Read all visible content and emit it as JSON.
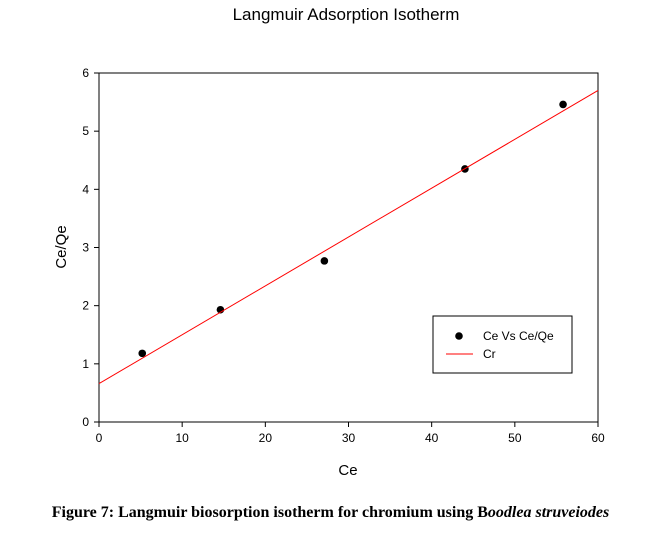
{
  "chart_data": {
    "type": "scatter",
    "title": "Langmuir Adsorption Isotherm",
    "xlabel": "Ce",
    "ylabel": "Ce/Qe",
    "xlim": [
      0,
      60
    ],
    "ylim": [
      0,
      6
    ],
    "xticks": [
      "0",
      "10",
      "20",
      "30",
      "40",
      "50",
      "60"
    ],
    "yticks": [
      "0",
      "1",
      "2",
      "3",
      "4",
      "5",
      "6"
    ],
    "grid": false,
    "legend_position": "lower-right",
    "series": [
      {
        "name": "Ce Vs Ce/Qe",
        "kind": "scatter",
        "color": "#000000",
        "points": [
          {
            "x": 5.2,
            "y": 1.18
          },
          {
            "x": 14.6,
            "y": 1.93
          },
          {
            "x": 27.1,
            "y": 2.77
          },
          {
            "x": 44.0,
            "y": 4.35
          },
          {
            "x": 55.8,
            "y": 5.46
          }
        ]
      },
      {
        "name": "Cr",
        "kind": "line",
        "color": "#ff0000",
        "points": [
          {
            "x": 0,
            "y": 0.66
          },
          {
            "x": 60,
            "y": 5.7
          }
        ]
      }
    ]
  },
  "caption": {
    "prefix": "Figure 7: Langmuir biosorption isotherm for chromium using B",
    "italic": "oodlea struveiodes"
  }
}
